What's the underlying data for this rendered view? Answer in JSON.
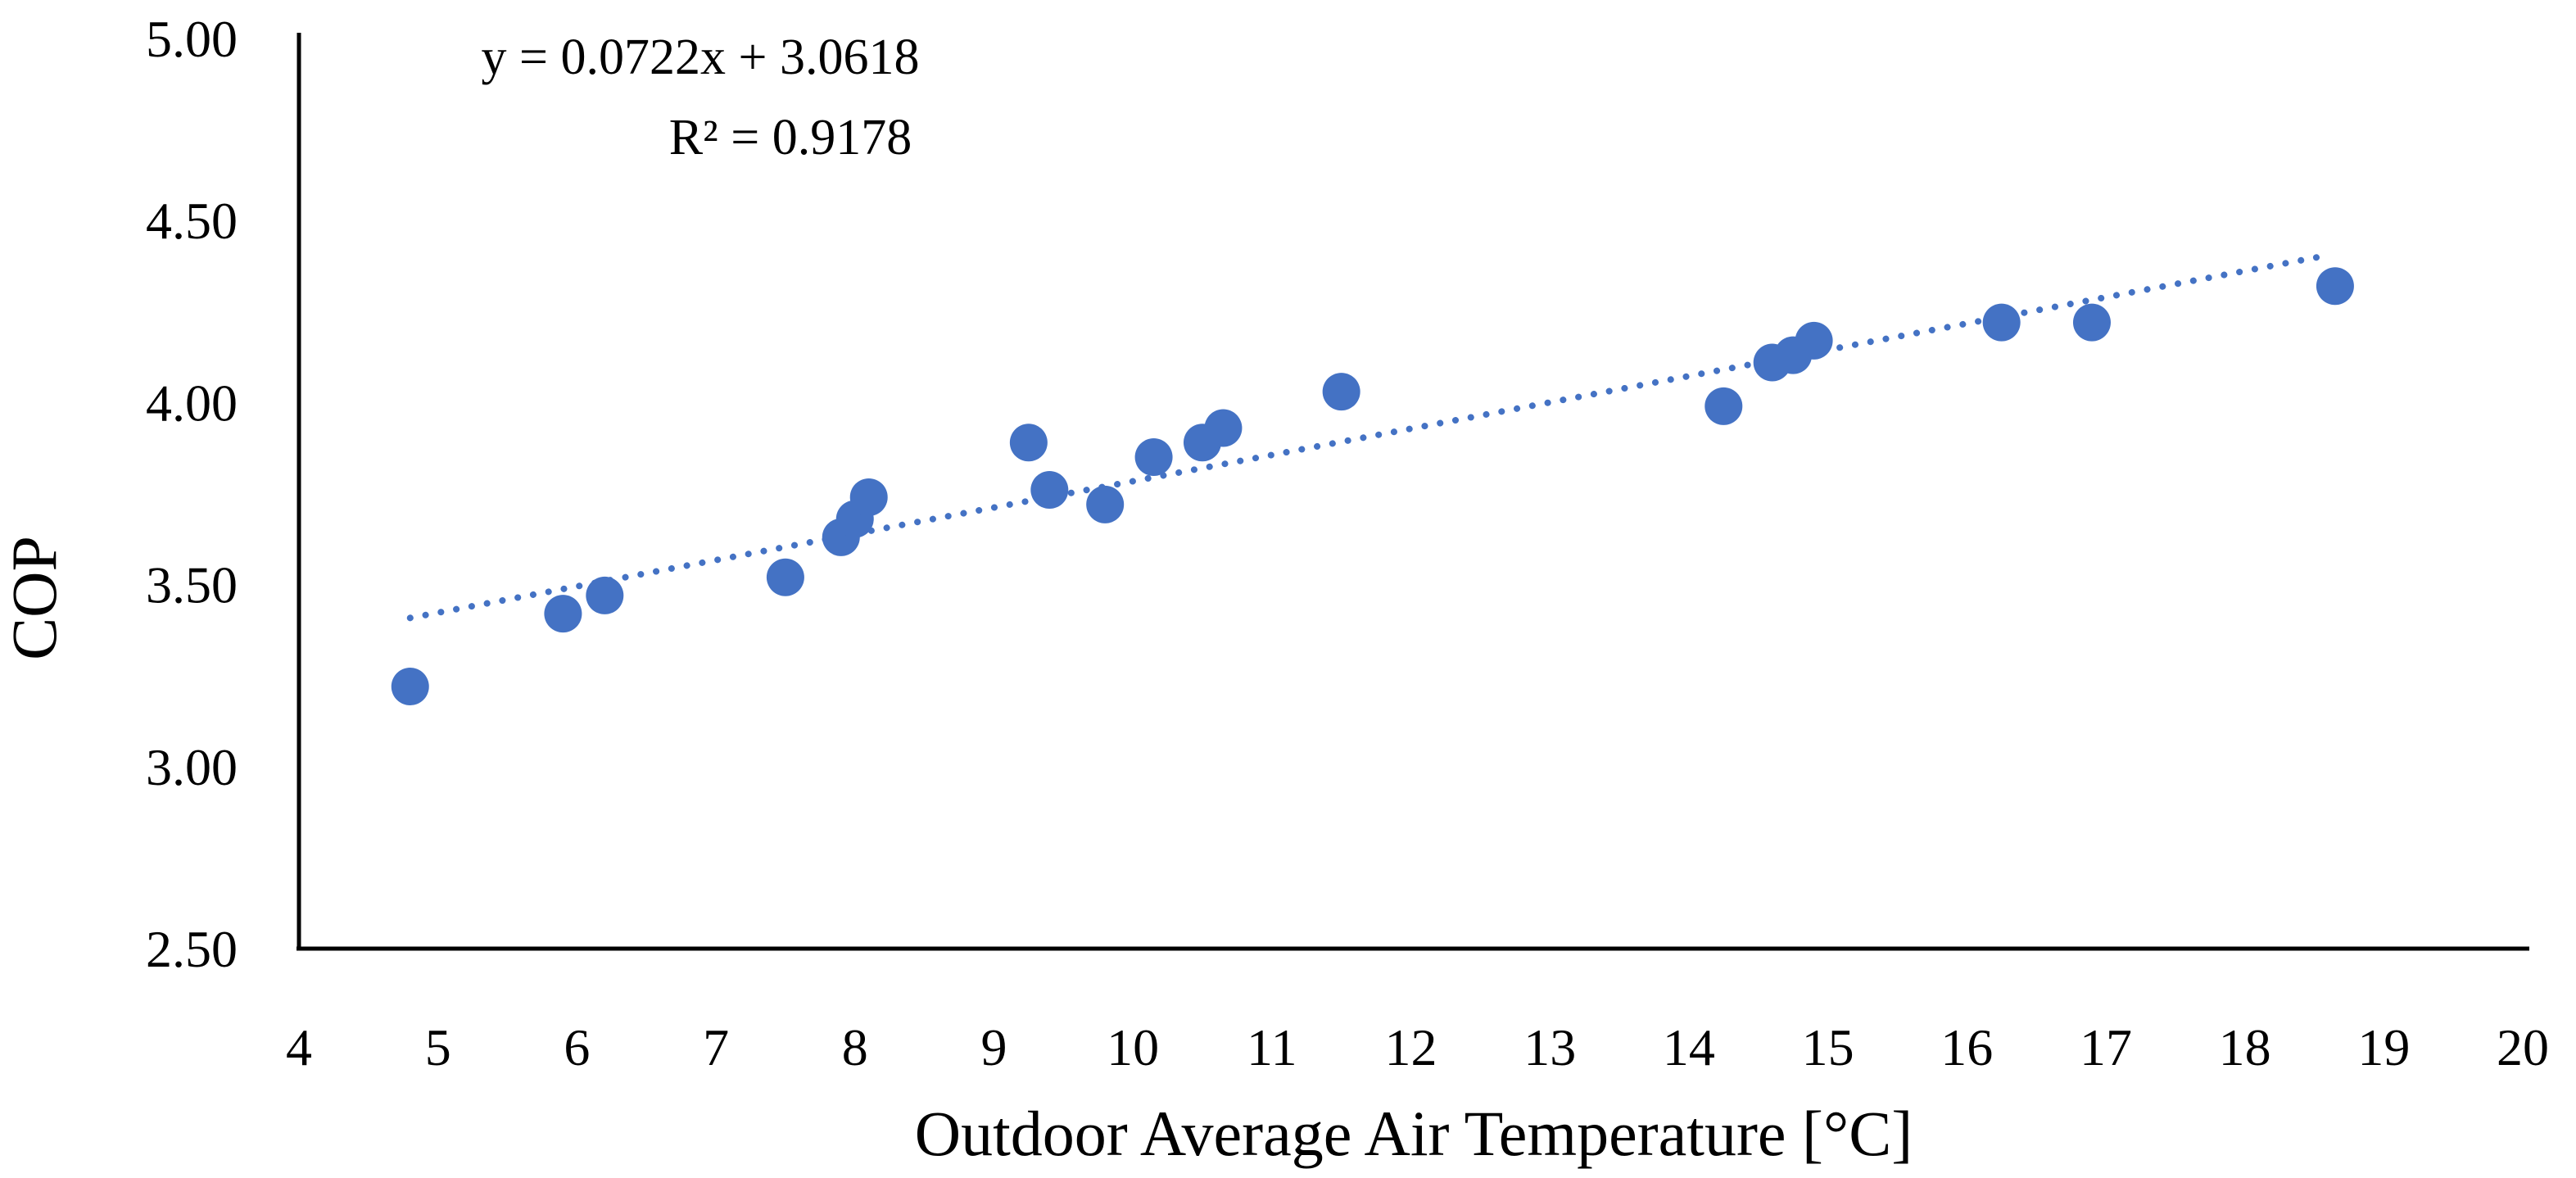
{
  "chart_data": {
    "type": "scatter",
    "title": "",
    "xlabel": "Outdoor Average Air Temperature [°C]",
    "ylabel": "COP",
    "xlim": [
      4,
      20
    ],
    "ylim": [
      2.5,
      5.0
    ],
    "x_ticks": [
      "4",
      "5",
      "6",
      "7",
      "8",
      "9",
      "10",
      "11",
      "12",
      "13",
      "14",
      "15",
      "16",
      "17",
      "18",
      "19",
      "20"
    ],
    "y_ticks": [
      "2.50",
      "3.00",
      "3.50",
      "4.00",
      "4.50",
      "5.00"
    ],
    "grid": false,
    "legend": false,
    "marker_color": "#4472C4",
    "series": [
      {
        "name": "COP",
        "points": [
          {
            "x": 4.8,
            "y": 3.22
          },
          {
            "x": 5.9,
            "y": 3.42
          },
          {
            "x": 6.2,
            "y": 3.47
          },
          {
            "x": 7.5,
            "y": 3.52
          },
          {
            "x": 7.9,
            "y": 3.63
          },
          {
            "x": 8.0,
            "y": 3.68
          },
          {
            "x": 8.1,
            "y": 3.74
          },
          {
            "x": 9.25,
            "y": 3.89
          },
          {
            "x": 9.4,
            "y": 3.76
          },
          {
            "x": 9.8,
            "y": 3.72
          },
          {
            "x": 10.15,
            "y": 3.85
          },
          {
            "x": 10.5,
            "y": 3.89
          },
          {
            "x": 10.65,
            "y": 3.93
          },
          {
            "x": 11.5,
            "y": 4.03
          },
          {
            "x": 14.25,
            "y": 3.99
          },
          {
            "x": 14.6,
            "y": 4.11
          },
          {
            "x": 14.75,
            "y": 4.13
          },
          {
            "x": 14.9,
            "y": 4.17
          },
          {
            "x": 16.25,
            "y": 4.22
          },
          {
            "x": 16.9,
            "y": 4.22
          },
          {
            "x": 18.65,
            "y": 4.32
          }
        ]
      }
    ],
    "trendline": {
      "type": "linear",
      "slope": 0.0722,
      "intercept": 3.0618,
      "x_start": 4.8,
      "x_end": 18.6,
      "equation_label": "y = 0.0722x + 3.0618",
      "r2_label": "R² = 0.9178"
    }
  }
}
